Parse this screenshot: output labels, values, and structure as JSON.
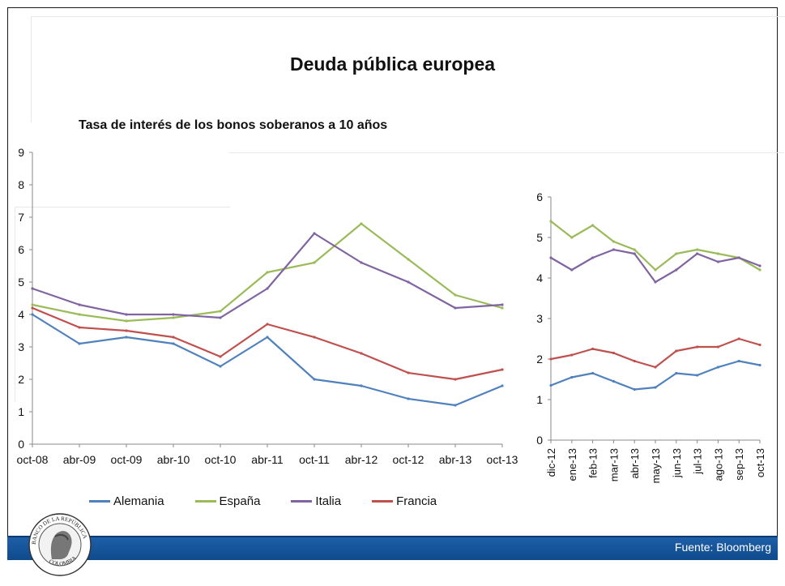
{
  "slide": {
    "title": "Deuda pública europea",
    "chart_title": "Tasa de interés de los bonos soberanos a 10 años",
    "source": "Fuente: Bloomberg"
  },
  "legend": [
    {
      "label": "Alemania",
      "color": "#4f81bd"
    },
    {
      "label": "España",
      "color": "#9bbb59"
    },
    {
      "label": "Italia",
      "color": "#8064a2"
    },
    {
      "label": "Francia",
      "color": "#c0504d"
    }
  ],
  "logo": {
    "text": "BANCO DE LA REPUBLICA · COLOMBIA"
  },
  "chart_data": [
    {
      "type": "line",
      "title": "Tasa de interés de los bonos soberanos a 10 años",
      "ylim": [
        0,
        9
      ],
      "yticks": [
        "0",
        "1",
        "2",
        "3",
        "4",
        "5",
        "6",
        "7",
        "8",
        "9"
      ],
      "x_tick_labels": [
        "oct-08",
        "abr-09",
        "oct-09",
        "abr-10",
        "oct-10",
        "abr-11",
        "oct-11",
        "abr-12",
        "oct-12",
        "abr-13",
        "oct-13"
      ],
      "x": [
        "oct-08",
        "abr-09",
        "oct-09",
        "abr-10",
        "oct-10",
        "abr-11",
        "oct-11",
        "abr-12",
        "oct-12",
        "abr-13",
        "oct-13"
      ],
      "series": [
        {
          "name": "Alemania",
          "color": "#4f81bd",
          "values": [
            4.0,
            3.1,
            3.3,
            3.1,
            2.4,
            3.3,
            2.0,
            1.8,
            1.4,
            1.2,
            1.8
          ]
        },
        {
          "name": "España",
          "color": "#9bbb59",
          "values": [
            4.3,
            4.0,
            3.8,
            3.9,
            4.1,
            5.3,
            5.6,
            6.8,
            5.7,
            4.6,
            4.2
          ]
        },
        {
          "name": "Italia",
          "color": "#8064a2",
          "values": [
            4.8,
            4.3,
            4.0,
            4.0,
            3.9,
            4.8,
            6.5,
            5.6,
            5.0,
            4.2,
            4.3
          ]
        },
        {
          "name": "Francia",
          "color": "#c0504d",
          "values": [
            4.2,
            3.6,
            3.5,
            3.3,
            2.7,
            3.7,
            3.3,
            2.8,
            2.2,
            2.0,
            2.3
          ]
        }
      ]
    },
    {
      "type": "line",
      "ylim": [
        0,
        6
      ],
      "yticks": [
        "0",
        "1",
        "2",
        "3",
        "4",
        "5",
        "6"
      ],
      "x_tick_labels": [
        "dic-12",
        "ene-13",
        "feb-13",
        "mar-13",
        "abr-13",
        "may-13",
        "jun-13",
        "jul-13",
        "ago-13",
        "sep-13",
        "oct-13"
      ],
      "x": [
        "dic-12",
        "ene-13",
        "feb-13",
        "mar-13",
        "abr-13",
        "may-13",
        "jun-13",
        "jul-13",
        "ago-13",
        "sep-13",
        "oct-13"
      ],
      "series": [
        {
          "name": "Alemania",
          "color": "#4f81bd",
          "values": [
            1.35,
            1.55,
            1.65,
            1.45,
            1.25,
            1.3,
            1.65,
            1.6,
            1.8,
            1.95,
            1.85
          ]
        },
        {
          "name": "España",
          "color": "#9bbb59",
          "values": [
            5.4,
            5.0,
            5.3,
            4.9,
            4.7,
            4.2,
            4.6,
            4.7,
            4.6,
            4.5,
            4.2
          ]
        },
        {
          "name": "Italia",
          "color": "#8064a2",
          "values": [
            4.5,
            4.2,
            4.5,
            4.7,
            4.6,
            3.9,
            4.2,
            4.6,
            4.4,
            4.5,
            4.3
          ]
        },
        {
          "name": "Francia",
          "color": "#c0504d",
          "values": [
            2.0,
            2.1,
            2.25,
            2.15,
            1.95,
            1.8,
            2.2,
            2.3,
            2.3,
            2.5,
            2.35
          ]
        }
      ]
    }
  ]
}
